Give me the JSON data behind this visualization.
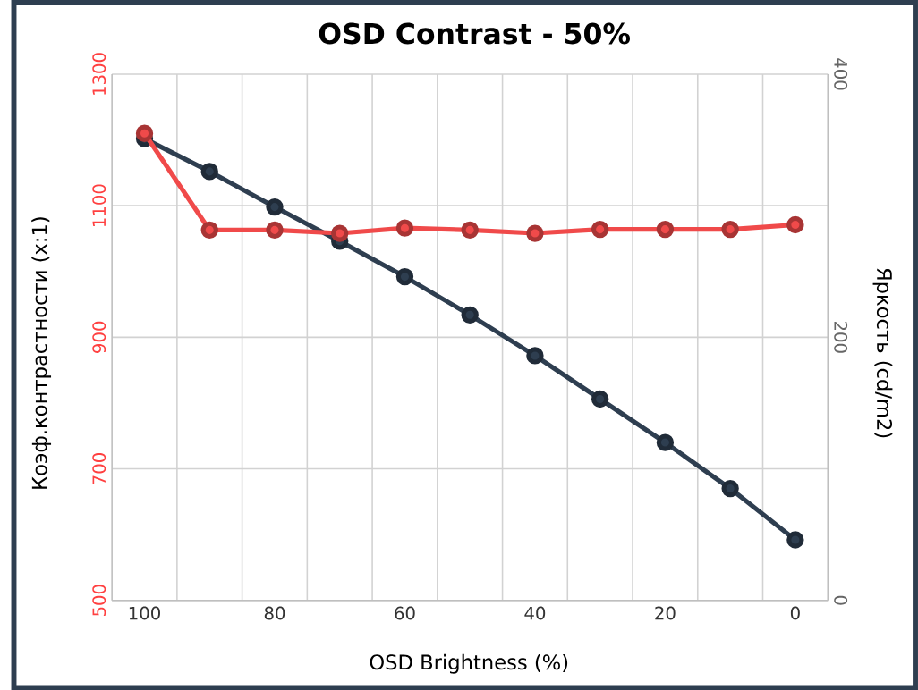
{
  "chart_data": {
    "type": "line",
    "title": "OSD Contrast - 50%",
    "xlabel": "OSD Brightness (%)",
    "ylabel": "Коэф.контрастности (x:1)",
    "y2label": "Яркость (cd/m2)",
    "categories": [
      "100",
      null,
      "80",
      null,
      "60",
      null,
      "40",
      null,
      "20",
      null,
      "0"
    ],
    "series": [
      {
        "color": "#f04a4a",
        "values": [
          1210,
          1063,
          1063,
          1058,
          1066,
          1063,
          1058,
          1064,
          1064,
          1064,
          1071
        ]
      },
      {
        "color": "#2e3e50",
        "axis": "y2",
        "values": [
          351,
          326,
          299,
          273,
          246,
          217,
          186,
          153,
          120,
          85,
          46
        ]
      }
    ],
    "ylim": [
      500,
      1300
    ],
    "yticks": [
      500,
      700,
      900,
      1100,
      1300
    ],
    "y2lim": [
      0,
      400
    ],
    "y2ticks": [
      0,
      200,
      400
    ],
    "grid": true,
    "marker": "circle",
    "line_style": "solid"
  }
}
